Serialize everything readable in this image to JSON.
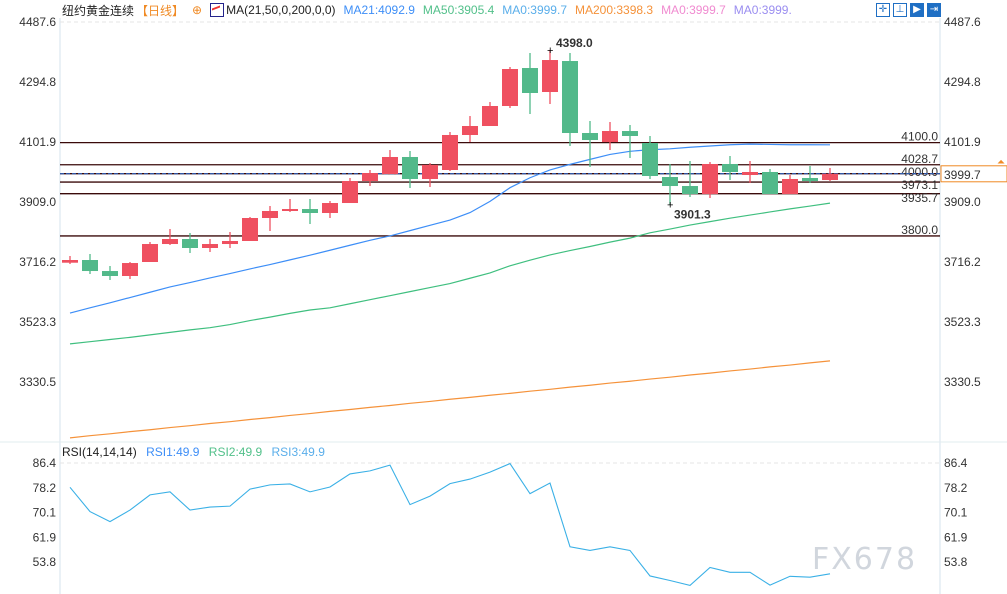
{
  "header": {
    "title": "纽约黄金连续",
    "period": "【日线】",
    "ma_name": "MA(21,50,0,200,0,0)",
    "ma_values": [
      {
        "label": "MA21:4092.9",
        "color": "#3d8ef7"
      },
      {
        "label": "MA50:3905.4",
        "color": "#52c08a"
      },
      {
        "label": "MA0:3999.7",
        "color": "#5aaeea"
      },
      {
        "label": "MA200:3398.3",
        "color": "#f5923a"
      },
      {
        "label": "MA0:3999.7",
        "color": "#f08ad0"
      },
      {
        "label": "MA0:3999.",
        "color": "#9a8df0"
      }
    ],
    "toolbar_icons": [
      "crosshair-icon",
      "zoom-range-icon",
      "chart-mode-icon",
      "exit-icon"
    ]
  },
  "rsi_header": {
    "name": "RSI(14,14,14)",
    "values": [
      {
        "label": "RSI1:49.9",
        "color": "#3d8ef7"
      },
      {
        "label": "RSI2:49.9",
        "color": "#52c08a"
      },
      {
        "label": "RSI3:49.9",
        "color": "#5aaeea"
      }
    ]
  },
  "watermark": "FX678",
  "colors": {
    "up": "#ef5060",
    "down": "#52b98a",
    "ma21": "#3d8ef7",
    "ma50": "#3fbf7f",
    "ma200": "#f5923a",
    "rsi": "#3ab0e6",
    "level": "#3a0a0a",
    "current": "#f08a24"
  },
  "chart_data": [
    {
      "type": "candlestick",
      "ylim": [
        3200,
        4530
      ],
      "y_ticks": [
        "4487.6",
        "4294.8",
        "4101.9",
        "3909.0",
        "3716.2",
        "3523.3",
        "3330.5"
      ],
      "candles": [
        [
          3713.9,
          3735.5,
          3709.7,
          3722.6
        ],
        [
          3722.6,
          3741.9,
          3677.6,
          3687.2
        ],
        [
          3687.2,
          3703.3,
          3658.3,
          3671.2
        ],
        [
          3671.2,
          3716.2,
          3661.5,
          3712.9
        ],
        [
          3716.2,
          3780.5,
          3716.2,
          3774.0
        ],
        [
          3774.0,
          3822.2,
          3770.8,
          3790.1
        ],
        [
          3790.1,
          3809.4,
          3745.1,
          3761.2
        ],
        [
          3761.2,
          3790.1,
          3748.3,
          3774.0
        ],
        [
          3774.0,
          3812.6,
          3761.2,
          3783.7
        ],
        [
          3783.7,
          3860.8,
          3783.7,
          3857.6
        ],
        [
          3857.6,
          3896.2,
          3815.8,
          3880.1
        ],
        [
          3880.1,
          3918.7,
          3876.9,
          3886.5
        ],
        [
          3886.5,
          3918.7,
          3838.3,
          3873.7
        ],
        [
          3873.7,
          3912.2,
          3857.6,
          3905.8
        ],
        [
          3905.8,
          3986.2,
          3905.8,
          3976.5
        ],
        [
          3976.5,
          4011.9,
          3960.4,
          4002.2
        ],
        [
          3999.0,
          4076.2,
          3999.0,
          4053.7
        ],
        [
          4053.7,
          4073.0,
          3954.0,
          3983.0
        ],
        [
          3983.0,
          4034.4,
          3957.2,
          4028.0
        ],
        [
          4011.9,
          4134.0,
          4008.7,
          4124.4
        ],
        [
          4124.4,
          4185.4,
          4101.9,
          4153.3
        ],
        [
          4153.3,
          4230.5,
          4153.3,
          4217.6
        ],
        [
          4217.6,
          4343.0,
          4211.2,
          4336.5
        ],
        [
          4339.7,
          4388.0,
          4191.9,
          4259.4
        ],
        [
          4262.6,
          4398.0,
          4224.0,
          4365.4
        ],
        [
          4362.2,
          4388.0,
          4089.0,
          4130.8
        ],
        [
          4130.8,
          4169.4,
          4021.5,
          4108.3
        ],
        [
          4101.9,
          4166.2,
          4076.2,
          4137.2
        ],
        [
          4137.2,
          4156.5,
          4050.5,
          4121.2
        ],
        [
          4098.7,
          4121.2,
          3983.0,
          3992.6
        ],
        [
          3989.4,
          4031.2,
          3901.3,
          3960.4
        ],
        [
          3960.4,
          4040.8,
          3925.1,
          3934.7
        ],
        [
          3934.7,
          4037.6,
          3921.9,
          4031.2
        ],
        [
          4031.2,
          4056.9,
          3979.7,
          4005.5
        ],
        [
          3995.8,
          4040.8,
          3970.1,
          4005.5
        ],
        [
          4005.5,
          4015.1,
          3934.7,
          3934.7
        ],
        [
          3934.7,
          3995.8,
          3934.7,
          3983.0
        ],
        [
          3986.2,
          4024.7,
          3970.1,
          3976.5
        ],
        [
          3979.7,
          4018.3,
          3976.5,
          3999.7
        ]
      ],
      "series": [
        {
          "name": "MA21",
          "values": [
            3552,
            3569,
            3585,
            3602,
            3619,
            3636,
            3650,
            3665,
            3679,
            3694,
            3708,
            3723,
            3738,
            3754,
            3770,
            3786,
            3800,
            3817,
            3834,
            3851,
            3875,
            3911,
            3955,
            3987,
            4012,
            4030,
            4046,
            4062,
            4072,
            4077,
            4080,
            4085,
            4089,
            4093,
            4095,
            4094,
            4093,
            4093,
            4092.9
          ]
        },
        {
          "name": "MA50",
          "values": [
            3453,
            3460,
            3467,
            3474,
            3482,
            3490,
            3498,
            3505,
            3515,
            3528,
            3539,
            3551,
            3562,
            3569,
            3582,
            3595,
            3608,
            3621,
            3634,
            3647,
            3664,
            3681,
            3704,
            3722,
            3739,
            3753,
            3766,
            3780,
            3793,
            3810,
            3822,
            3835,
            3846,
            3857,
            3867,
            3877,
            3887,
            3896,
            3905.4
          ]
        },
        {
          "name": "MA200",
          "values": [
            3151,
            3158,
            3164,
            3171,
            3177,
            3184,
            3190,
            3197,
            3203,
            3210,
            3216,
            3223,
            3229,
            3236,
            3242,
            3249,
            3255,
            3262,
            3268,
            3275,
            3281,
            3288,
            3294,
            3301,
            3307,
            3314,
            3320,
            3327,
            3333,
            3340,
            3346,
            3353,
            3359,
            3366,
            3372,
            3379,
            3385,
            3392,
            3398.3
          ]
        }
      ],
      "levels": [
        {
          "value": 4100.0,
          "label": "4100.0"
        },
        {
          "value": 4028.7,
          "label": "4028.7"
        },
        {
          "value": 4000.0,
          "label": "4000.0"
        },
        {
          "value": 3973.1,
          "label": "3973.1"
        },
        {
          "value": 3935.7,
          "label": "3935.7"
        },
        {
          "value": 3800.0,
          "label": "3800.0"
        }
      ],
      "current_price": {
        "value": 3999.7,
        "label": "3999.7"
      },
      "annotations": [
        {
          "candle": 24,
          "value": 4398.0,
          "label": "4398.0",
          "kind": "high"
        },
        {
          "candle": 30,
          "value": 3901.3,
          "label": "3901.3",
          "kind": "low"
        }
      ]
    },
    {
      "type": "line",
      "title": "RSI(14,14,14)",
      "ylim": [
        46,
        86.4
      ],
      "y_ticks": [
        "86.4",
        "78.2",
        "70.1",
        "61.9",
        "53.8"
      ],
      "series": [
        {
          "name": "RSI1",
          "values": [
            78.4,
            70.4,
            67.1,
            70.9,
            75.9,
            76.9,
            70.9,
            71.9,
            72.2,
            77.8,
            79.2,
            79.5,
            76.9,
            78.5,
            82.8,
            83.8,
            85.7,
            72.7,
            75.5,
            79.6,
            81.1,
            83.4,
            86.2,
            76.3,
            79.8,
            58.8,
            57.6,
            58.8,
            57.6,
            49.2,
            47.7,
            46.1,
            52.0,
            50.4,
            50.4,
            46.2,
            49.1,
            48.8,
            49.9
          ]
        }
      ]
    }
  ]
}
